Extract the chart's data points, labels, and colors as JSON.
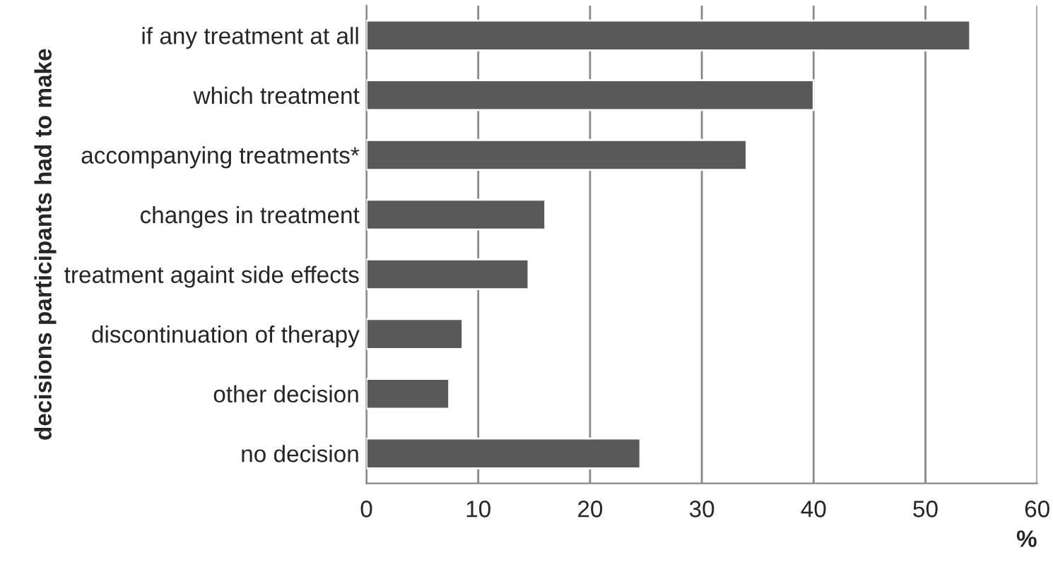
{
  "chart_data": {
    "type": "bar",
    "orientation": "horizontal",
    "categories": [
      "if any treatment at all",
      "which treatment",
      "accompanying treatments*",
      "changes in treatment",
      "treatment againt side effects",
      "discontinuation of therapy",
      "other decision",
      "no decision"
    ],
    "values": [
      54,
      40,
      34,
      16,
      14.5,
      8.6,
      7.4,
      24.5
    ],
    "color": "#595959",
    "xlim": [
      0,
      60
    ],
    "xticks": [
      0,
      10,
      20,
      30,
      40,
      50,
      60
    ],
    "xlabel": "%",
    "ylabel": "decisions participants had to make",
    "grid": "x",
    "legend": false
  }
}
